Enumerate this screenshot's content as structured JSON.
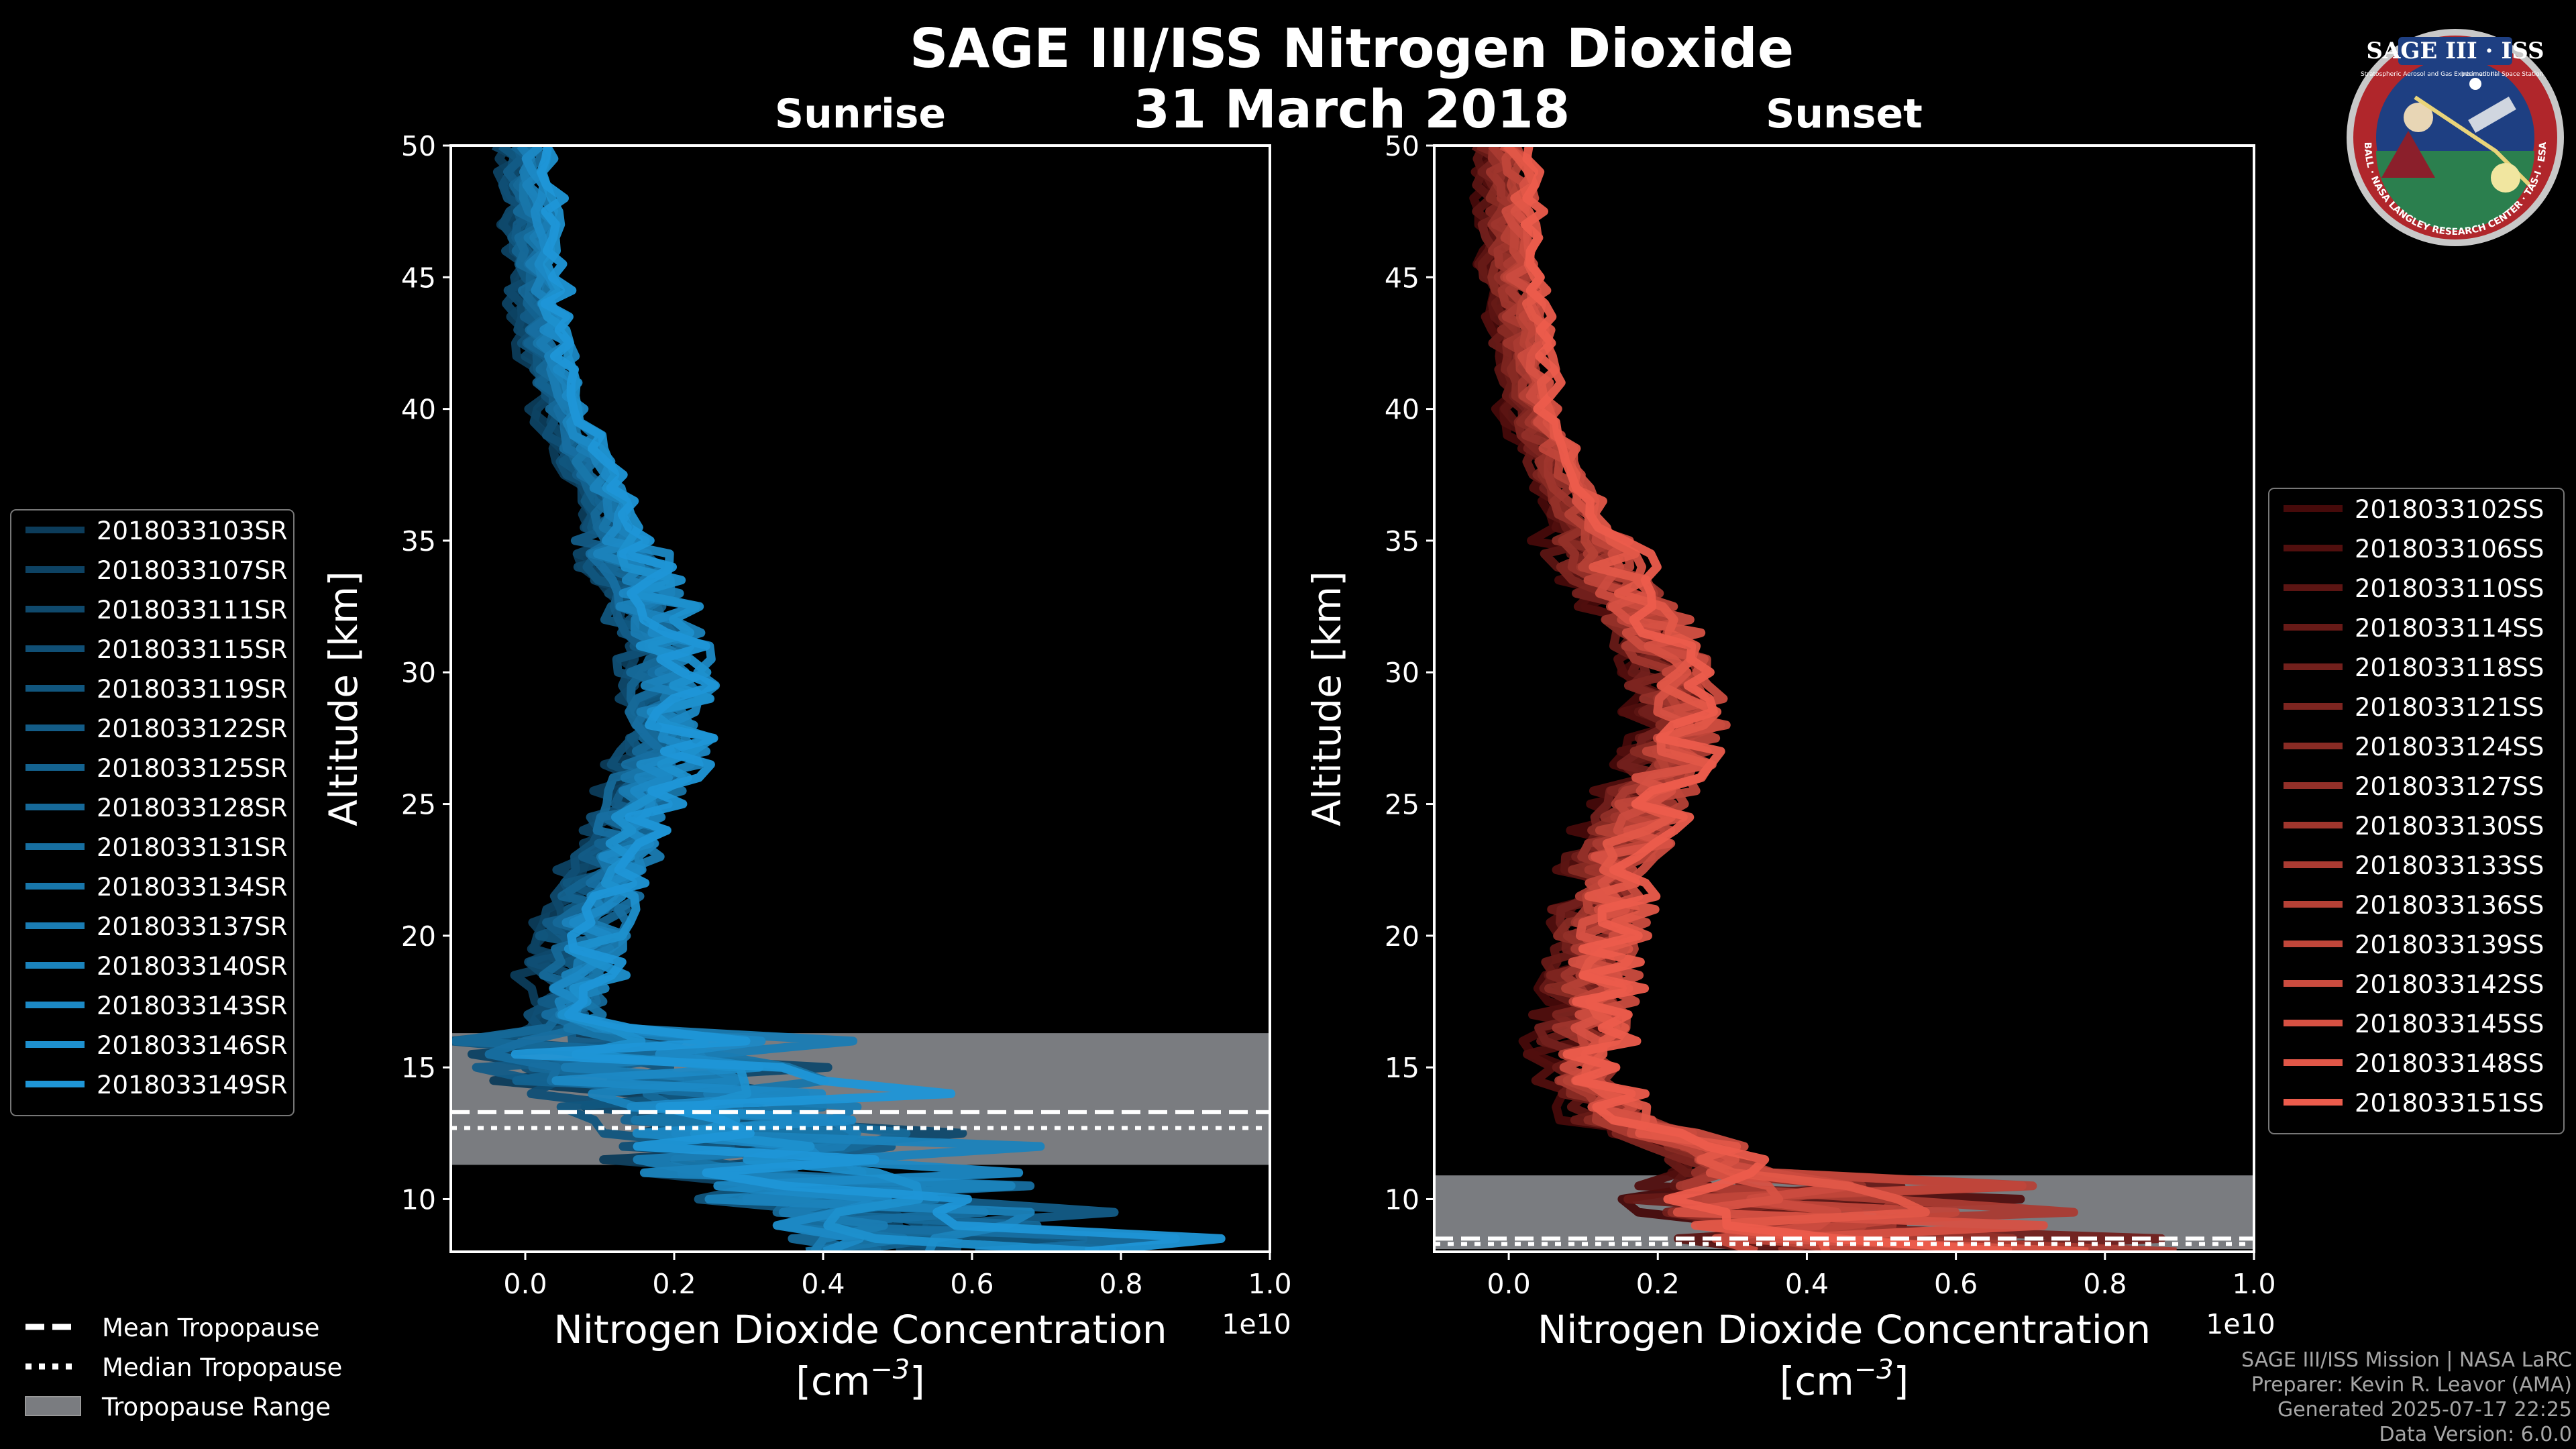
{
  "title": "SAGE III/ISS Nitrogen Dioxide",
  "date": "31 March 2018",
  "footer": {
    "line1": "SAGE III/ISS Mission | NASA LaRC",
    "line2": "Preparer: Kevin R. Leavor (AMA)",
    "line3": "Generated 2025-07-17 22:25",
    "line4": "Data Version: 6.0.0"
  },
  "logo": {
    "name": "SAGE III · ISS",
    "tagline": "Stratospheric Aerosol and Gas Experiment III",
    "station": "International Space Station",
    "ring_text": "BALL · NASA LANGLEY RESEARCH CENTER · TAS-I · ESA"
  },
  "common_legend": {
    "mean": "Mean Tropopause",
    "median": "Median Tropopause",
    "range": "Tropopause Range"
  },
  "colors": {
    "sunrise": "#1f93d2",
    "sunset": "#e8584a",
    "tropopause_range": "#7a7c80",
    "axes": "#ffffff"
  },
  "chart_data": [
    {
      "type": "line",
      "panel": "Sunrise",
      "title": "Sunrise",
      "xlabel": "Nitrogen Dioxide Concentration",
      "xlabel_unit": "[cm",
      "xlabel_exp": "−3",
      "xlabel_close": "]",
      "ylabel": "Altitude [km]",
      "x_offset_label": "1e10",
      "xlim": [
        -0.1,
        1.0
      ],
      "ylim": [
        8,
        50
      ],
      "xticks": [
        0.0,
        0.2,
        0.4,
        0.6,
        0.8,
        1.0
      ],
      "xtick_labels": [
        "0.0",
        "0.2",
        "0.4",
        "0.6",
        "0.8",
        "1.0"
      ],
      "yticks": [
        10,
        15,
        20,
        25,
        30,
        35,
        40,
        45,
        50
      ],
      "tropopause": {
        "min": 11.3,
        "max": 16.3,
        "mean": 13.3,
        "median": 12.7
      },
      "legend_position": "left",
      "series_names": [
        "2018033103SR",
        "2018033107SR",
        "2018033111SR",
        "2018033115SR",
        "2018033119SR",
        "2018033122SR",
        "2018033125SR",
        "2018033128SR",
        "2018033131SR",
        "2018033134SR",
        "2018033137SR",
        "2018033140SR",
        "2018033143SR",
        "2018033146SR",
        "2018033149SR"
      ],
      "mean_profile": [
        [
          50,
          0.0
        ],
        [
          48,
          0.01
        ],
        [
          46,
          0.01
        ],
        [
          44,
          0.02
        ],
        [
          42,
          0.03
        ],
        [
          40,
          0.05
        ],
        [
          38,
          0.08
        ],
        [
          36,
          0.11
        ],
        [
          34,
          0.14
        ],
        [
          32,
          0.17
        ],
        [
          30,
          0.19
        ],
        [
          28,
          0.19
        ],
        [
          26,
          0.17
        ],
        [
          24,
          0.14
        ],
        [
          22,
          0.11
        ],
        [
          20,
          0.08
        ],
        [
          18,
          0.06
        ],
        [
          16,
          0.08
        ],
        [
          15,
          0.12
        ],
        [
          14,
          0.2
        ],
        [
          13,
          0.28
        ],
        [
          12,
          0.3
        ],
        [
          11,
          0.32
        ],
        [
          10,
          0.4
        ],
        [
          9,
          0.5
        ],
        [
          8,
          0.55
        ]
      ]
    },
    {
      "type": "line",
      "panel": "Sunset",
      "title": "Sunset",
      "xlabel": "Nitrogen Dioxide Concentration",
      "xlabel_unit": "[cm",
      "xlabel_exp": "−3",
      "xlabel_close": "]",
      "ylabel": "Altitude [km]",
      "x_offset_label": "1e10",
      "xlim": [
        -0.1,
        1.0
      ],
      "ylim": [
        8,
        50
      ],
      "xticks": [
        0.0,
        0.2,
        0.4,
        0.6,
        0.8,
        1.0
      ],
      "xtick_labels": [
        "0.0",
        "0.2",
        "0.4",
        "0.6",
        "0.8",
        "1.0"
      ],
      "yticks": [
        10,
        15,
        20,
        25,
        30,
        35,
        40,
        45,
        50
      ],
      "tropopause": {
        "min": 8.1,
        "max": 10.9,
        "mean": 8.5,
        "median": 8.3
      },
      "legend_position": "right",
      "series_names": [
        "2018033102SS",
        "2018033106SS",
        "2018033110SS",
        "2018033114SS",
        "2018033118SS",
        "2018033121SS",
        "2018033124SS",
        "2018033127SS",
        "2018033130SS",
        "2018033133SS",
        "2018033136SS",
        "2018033139SS",
        "2018033142SS",
        "2018033145SS",
        "2018033148SS",
        "2018033151SS"
      ],
      "mean_profile": [
        [
          50,
          -0.01
        ],
        [
          48,
          0.0
        ],
        [
          46,
          0.0
        ],
        [
          44,
          0.01
        ],
        [
          42,
          0.02
        ],
        [
          40,
          0.03
        ],
        [
          38,
          0.06
        ],
        [
          36,
          0.09
        ],
        [
          34,
          0.13
        ],
        [
          32,
          0.18
        ],
        [
          30,
          0.22
        ],
        [
          28,
          0.23
        ],
        [
          26,
          0.2
        ],
        [
          24,
          0.16
        ],
        [
          22,
          0.13
        ],
        [
          20,
          0.12
        ],
        [
          18,
          0.11
        ],
        [
          16,
          0.1
        ],
        [
          15,
          0.1
        ],
        [
          14,
          0.12
        ],
        [
          13,
          0.15
        ],
        [
          12,
          0.25
        ],
        [
          11,
          0.3
        ],
        [
          10,
          0.35
        ],
        [
          9,
          0.4
        ],
        [
          8,
          0.45
        ]
      ]
    }
  ]
}
